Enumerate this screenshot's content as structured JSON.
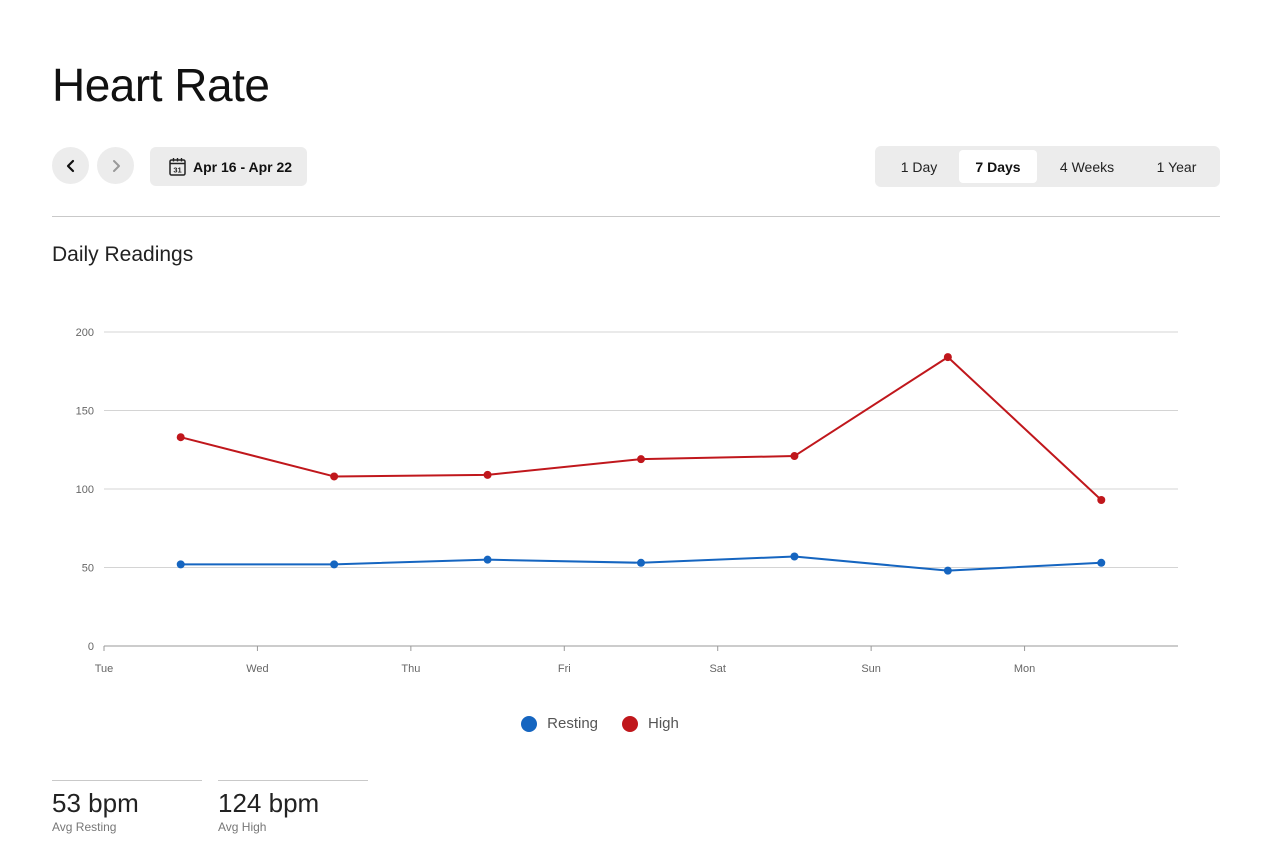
{
  "page": {
    "title": "Heart Rate"
  },
  "navigation": {
    "prev_icon": "chevron-left-icon",
    "next_icon": "chevron-right-icon",
    "calendar_icon": "calendar-icon",
    "calendar_day": "31",
    "date_range": "Apr 16 - Apr 22"
  },
  "range_tabs": [
    {
      "label": "1 Day",
      "active": false
    },
    {
      "label": "7 Days",
      "active": true
    },
    {
      "label": "4 Weeks",
      "active": false
    },
    {
      "label": "1 Year",
      "active": false
    }
  ],
  "section": {
    "title": "Daily Readings"
  },
  "chart_data": {
    "type": "line",
    "x_tick_labels": [
      "Tue",
      "Wed",
      "Thu",
      "Fri",
      "Sat",
      "Sun",
      "Mon"
    ],
    "y_ticks": [
      0,
      50,
      100,
      150,
      200
    ],
    "ylim": [
      0,
      200
    ],
    "grid": true,
    "legend_position": "bottom",
    "series": [
      {
        "name": "Resting",
        "color": "#1565c0",
        "values": [
          52,
          52,
          55,
          53,
          57,
          48,
          53
        ]
      },
      {
        "name": "High",
        "color": "#c0171c",
        "values": [
          133,
          108,
          109,
          119,
          121,
          184,
          93
        ]
      }
    ]
  },
  "stats": [
    {
      "value": "53 bpm",
      "label": "Avg Resting"
    },
    {
      "value": "124 bpm",
      "label": "Avg High"
    }
  ]
}
